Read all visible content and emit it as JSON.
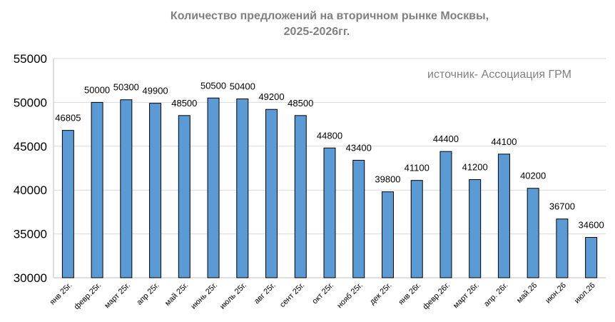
{
  "chart_data": {
    "type": "bar",
    "title_line1": "Количество  предложений на вторичном рынке Москвы,",
    "title_line2": "2025-2026гг.",
    "annotation": "источник- Ассоциация ГРМ",
    "categories": [
      "янв 25г.",
      "февр.25г.",
      "март 25г.",
      "апр 25г.",
      "май 25г.",
      "июнь 25г.",
      "июль 25г.",
      "авг 25г.",
      "сент 25г.",
      "окт 25г.",
      "нояб 25г.",
      "дек 25г.",
      "янв 26г.",
      "февр.26г.",
      "март 26г.",
      "апр. 26г.",
      "май.26",
      "июн.26",
      "июл.26"
    ],
    "values": [
      46805,
      50000,
      50300,
      49900,
      48500,
      50500,
      50400,
      49200,
      48500,
      44800,
      43400,
      39800,
      41100,
      44400,
      41200,
      44100,
      40200,
      36700,
      34600
    ],
    "ylim": [
      30000,
      55000
    ],
    "yticks": [
      30000,
      35000,
      40000,
      45000,
      50000,
      55000
    ],
    "grid": true,
    "legend": "none",
    "bar_color": "#5B9BD5"
  }
}
